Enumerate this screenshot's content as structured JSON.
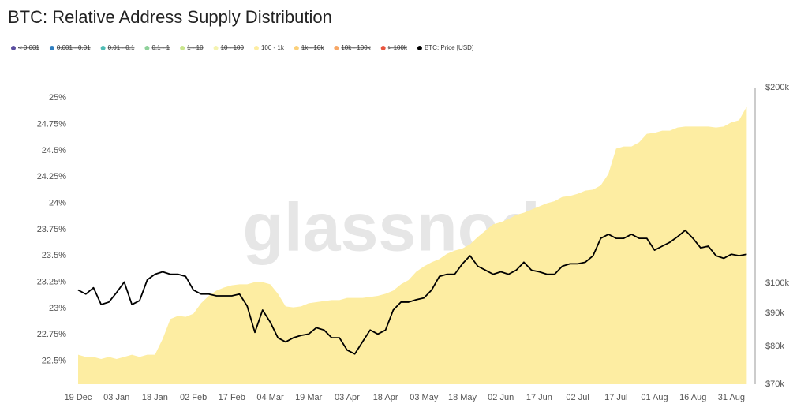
{
  "chart_data": {
    "type": "area",
    "title": "BTC: Relative Address Supply Distribution",
    "watermark": "glassnode",
    "categories": [
      "19 Dec",
      null,
      null,
      null,
      null,
      "03 Jan",
      null,
      null,
      null,
      null,
      "18 Jan",
      null,
      null,
      null,
      null,
      "02 Feb",
      null,
      null,
      null,
      null,
      "17 Feb",
      null,
      null,
      null,
      null,
      "04 Mar",
      null,
      null,
      null,
      null,
      "19 Mar",
      null,
      null,
      null,
      null,
      "03 Apr",
      null,
      null,
      null,
      null,
      "18 Apr",
      null,
      null,
      null,
      null,
      "03 May",
      null,
      null,
      null,
      null,
      "18 May",
      null,
      null,
      null,
      null,
      "02 Jun",
      null,
      null,
      null,
      null,
      "17 Jun",
      null,
      null,
      null,
      null,
      "02 Jul",
      null,
      null,
      null,
      null,
      "17 Jul",
      null,
      null,
      null,
      null,
      "01 Aug",
      null,
      null,
      null,
      null,
      "16 Aug",
      null,
      null,
      null,
      null,
      "31 Aug",
      null,
      null
    ],
    "series": [
      {
        "name": "< 0.001",
        "color": "#5b4ea0",
        "hidden": true
      },
      {
        "name": "0.001 - 0.01",
        "color": "#2f7fc1",
        "hidden": true
      },
      {
        "name": "0.01 - 0.1",
        "color": "#4fbcb4",
        "hidden": true
      },
      {
        "name": "0.1 - 1",
        "color": "#8ed19a",
        "hidden": true
      },
      {
        "name": "1 - 10",
        "color": "#c9e58d",
        "hidden": true
      },
      {
        "name": "10 - 100",
        "color": "#f4f3b0",
        "hidden": true
      },
      {
        "name": "100 - 1k",
        "color": "#fdeda2",
        "type": "area",
        "axis": "y",
        "values": [
          22.56,
          22.54,
          22.54,
          22.52,
          22.54,
          22.52,
          22.54,
          22.56,
          22.54,
          22.56,
          22.56,
          22.71,
          22.9,
          22.93,
          22.92,
          22.95,
          23.05,
          23.12,
          23.17,
          23.2,
          23.22,
          23.23,
          23.23,
          23.25,
          23.25,
          23.23,
          23.14,
          23.02,
          23.01,
          23.02,
          23.05,
          23.06,
          23.07,
          23.08,
          23.08,
          23.1,
          23.1,
          23.1,
          23.11,
          23.12,
          23.14,
          23.17,
          23.23,
          23.27,
          23.35,
          23.4,
          23.44,
          23.47,
          23.52,
          23.55,
          23.57,
          23.61,
          23.68,
          23.74,
          23.8,
          23.82,
          23.85,
          23.89,
          23.91,
          23.94,
          23.97,
          24.0,
          24.02,
          24.06,
          24.07,
          24.09,
          24.12,
          24.13,
          24.17,
          24.28,
          24.52,
          24.54,
          24.54,
          24.58,
          24.66,
          24.67,
          24.69,
          24.69,
          24.72,
          24.73,
          24.73,
          24.73,
          24.73,
          24.72,
          24.73,
          24.77,
          24.79,
          24.92
        ]
      },
      {
        "name": "1k - 10k",
        "color": "#fbd07a",
        "hidden": true
      },
      {
        "name": "10k - 100k",
        "color": "#f7a766",
        "hidden": true
      },
      {
        "name": "> 100k",
        "color": "#e8553f",
        "hidden": true
      },
      {
        "name": "BTC: Price [USD]",
        "color": "#000000",
        "type": "line",
        "axis": "y2",
        "values": [
          97700,
          96300,
          98500,
          92800,
          93600,
          96800,
          100500,
          92800,
          94100,
          101300,
          103300,
          104200,
          103300,
          103300,
          102500,
          97700,
          96300,
          96300,
          95700,
          95700,
          95700,
          96300,
          92300,
          84100,
          91000,
          87200,
          82500,
          81300,
          82500,
          83200,
          83600,
          85500,
          84800,
          82500,
          82500,
          79000,
          77900,
          81300,
          84800,
          83600,
          84800,
          91000,
          93600,
          93600,
          94400,
          95000,
          97700,
          102500,
          103300,
          103300,
          107200,
          110300,
          106300,
          104800,
          103300,
          104200,
          103300,
          104800,
          107800,
          104800,
          104200,
          103300,
          103300,
          106300,
          107200,
          107200,
          107800,
          110300,
          117300,
          119000,
          117300,
          117300,
          119000,
          117300,
          117300,
          112500,
          114100,
          115700,
          118000,
          120700,
          117300,
          113400,
          114100,
          110300,
          109300,
          110900,
          110300,
          110900
        ]
      }
    ],
    "ylim": [
      22.28,
      25.1
    ],
    "yticks": [
      {
        "value": 22.5,
        "label": "22.5%"
      },
      {
        "value": 22.75,
        "label": "22.75%"
      },
      {
        "value": 23,
        "label": "23%"
      },
      {
        "value": 23.25,
        "label": "23.25%"
      },
      {
        "value": 23.5,
        "label": "23.5%"
      },
      {
        "value": 23.75,
        "label": "23.75%"
      },
      {
        "value": 24,
        "label": "24%"
      },
      {
        "value": 24.25,
        "label": "24.25%"
      },
      {
        "value": 24.5,
        "label": "24.5%"
      },
      {
        "value": 24.75,
        "label": "24.75%"
      },
      {
        "value": 25,
        "label": "25%"
      }
    ],
    "y2lim": [
      70000,
      200000
    ],
    "y2log": true,
    "y2ticks": [
      {
        "value": 70000,
        "label": "$70k"
      },
      {
        "value": 80000,
        "label": "$80k"
      },
      {
        "value": 90000,
        "label": "$90k"
      },
      {
        "value": 100000,
        "label": "$100k"
      },
      {
        "value": 200000,
        "label": "$200k"
      }
    ],
    "grid": false
  }
}
